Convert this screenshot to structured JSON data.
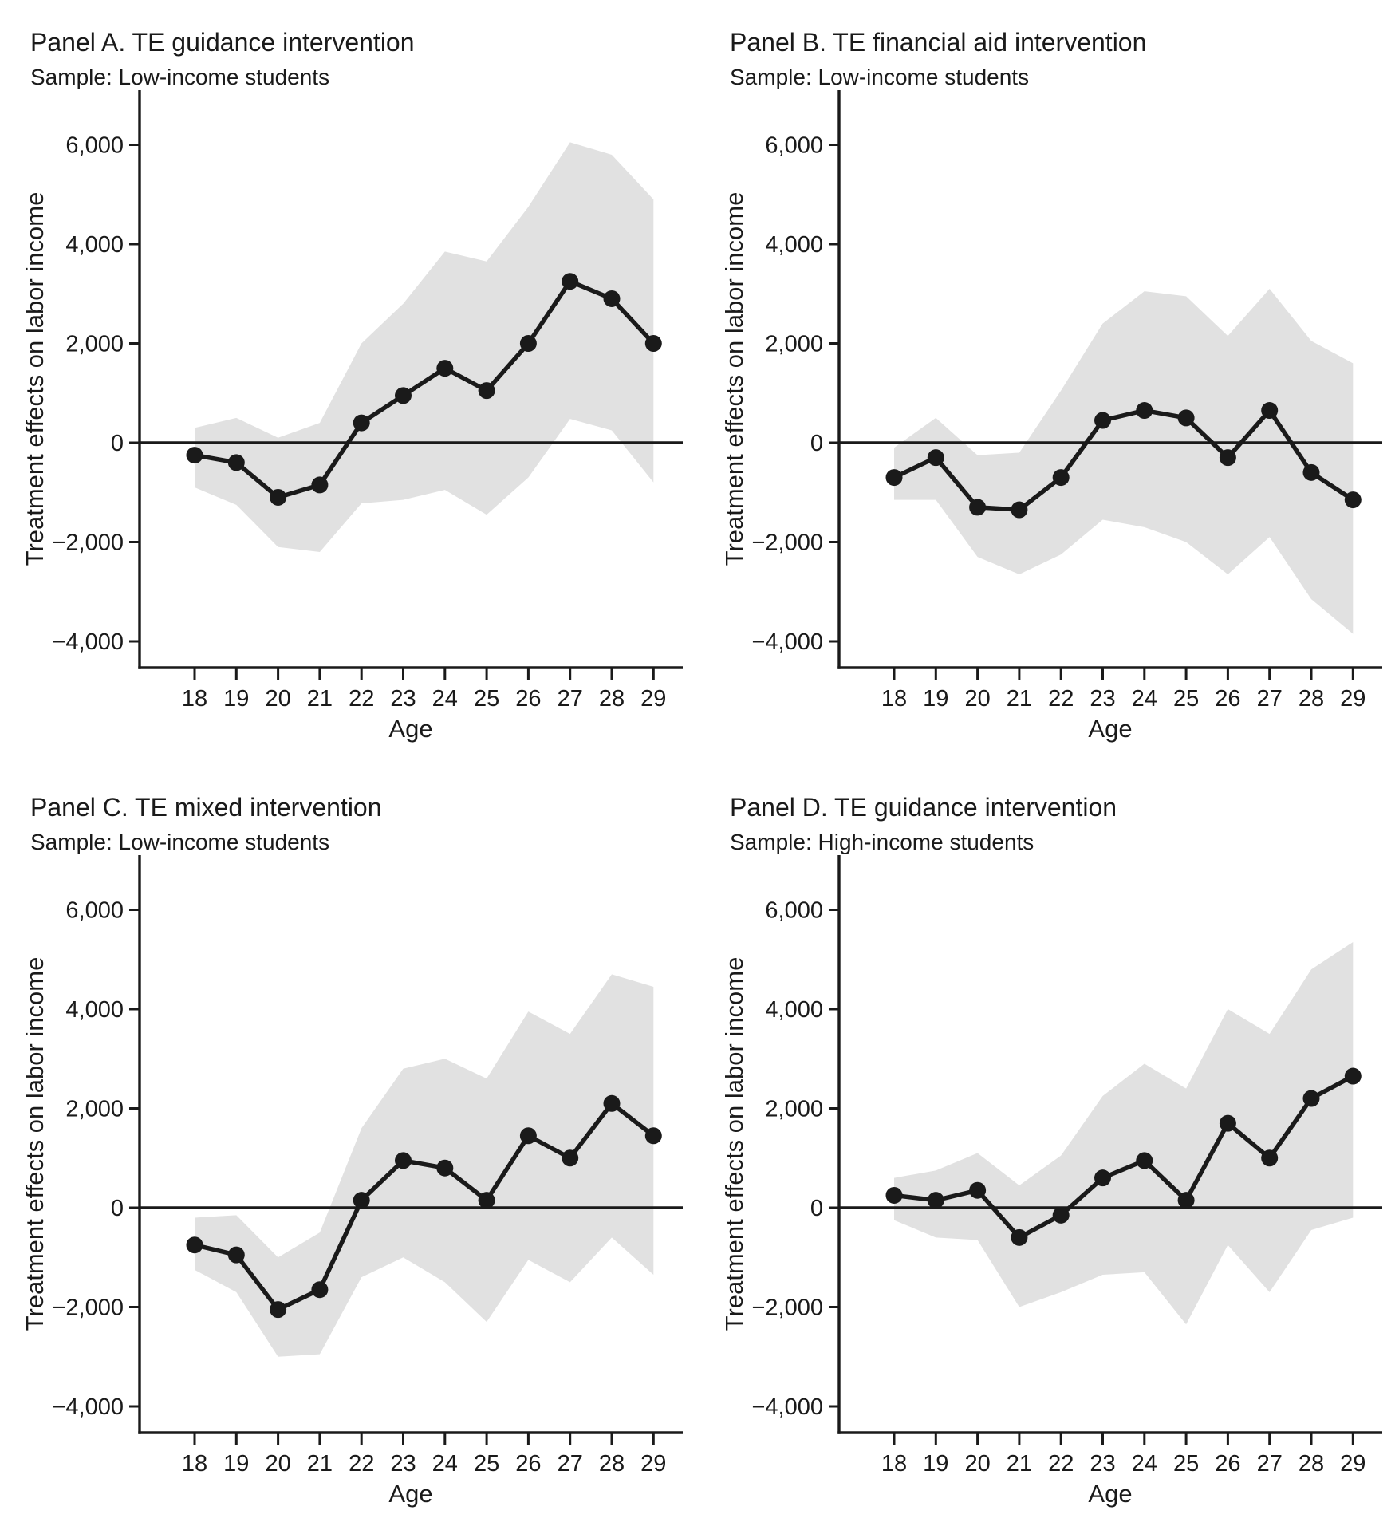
{
  "page": {
    "background": "#ffffff",
    "figure_kind": "2x2 panel line charts with shaded 95% confidence bands"
  },
  "style": {
    "line_color": "#1a1a1a",
    "marker_color": "#1a1a1a",
    "band_color": "#e1e1e1",
    "axis_color": "#1a1a1a",
    "text_color": "#1a1a1a",
    "background": "#ffffff"
  },
  "axes": {
    "yticks": [
      {
        "value": 6000,
        "label": "6,000"
      },
      {
        "value": 4000,
        "label": "4,000"
      },
      {
        "value": 2000,
        "label": "2,000"
      },
      {
        "value": 0,
        "label": "0"
      },
      {
        "value": -2000,
        "label": "−2,000"
      },
      {
        "value": -4000,
        "label": "−4,000"
      }
    ],
    "ylim": [
      -4800,
      6800
    ],
    "grid": false,
    "legend": "none",
    "zero_line": true
  },
  "chart_data": [
    {
      "type": "line",
      "title": "Panel A. TE guidance intervention",
      "subtitle": "Sample: Low-income students",
      "xlabel": "Age",
      "ylabel": "Treatment effects on labor income",
      "x": [
        18,
        19,
        20,
        21,
        22,
        23,
        24,
        25,
        26,
        27,
        28,
        29
      ],
      "values": [
        -250,
        -400,
        -1100,
        -850,
        400,
        950,
        1500,
        1050,
        2000,
        3250,
        2900,
        2000
      ],
      "ci_upper": [
        300,
        500,
        100,
        400,
        2000,
        2800,
        3850,
        3650,
        4750,
        6050,
        5800,
        4900
      ],
      "ci_lower": [
        -900,
        -1250,
        -2100,
        -2200,
        -1220,
        -1150,
        -950,
        -1450,
        -700,
        480,
        250,
        -800
      ]
    },
    {
      "type": "line",
      "title": "Panel B. TE financial aid intervention",
      "subtitle": "Sample: Low-income students",
      "xlabel": "Age",
      "ylabel": "Treatment effects on labor income",
      "x": [
        18,
        19,
        20,
        21,
        22,
        23,
        24,
        25,
        26,
        27,
        28,
        29
      ],
      "values": [
        -700,
        -300,
        -1300,
        -1350,
        -700,
        450,
        650,
        500,
        -300,
        650,
        -600,
        -1150
      ],
      "ci_upper": [
        -100,
        500,
        -250,
        -200,
        1050,
        2400,
        3050,
        2950,
        2150,
        3100,
        2050,
        1600
      ],
      "ci_lower": [
        -1150,
        -1150,
        -2300,
        -2650,
        -2250,
        -1550,
        -1700,
        -2000,
        -2650,
        -1900,
        -3150,
        -3850
      ]
    },
    {
      "type": "line",
      "title": "Panel C. TE mixed intervention",
      "subtitle": "Sample: Low-income students",
      "xlabel": "Age",
      "ylabel": "Treatment effects on labor income",
      "x": [
        18,
        19,
        20,
        21,
        22,
        23,
        24,
        25,
        26,
        27,
        28,
        29
      ],
      "values": [
        -750,
        -950,
        -2050,
        -1650,
        150,
        950,
        800,
        150,
        1450,
        1000,
        2100,
        1450
      ],
      "ci_upper": [
        -200,
        -150,
        -1000,
        -500,
        1600,
        2800,
        3000,
        2600,
        3950,
        3500,
        4700,
        4450
      ],
      "ci_lower": [
        -1250,
        -1700,
        -3000,
        -2950,
        -1400,
        -1000,
        -1500,
        -2300,
        -1050,
        -1500,
        -600,
        -1350
      ]
    },
    {
      "type": "line",
      "title": "Panel D. TE guidance intervention",
      "subtitle": "Sample: High-income students",
      "xlabel": "Age",
      "ylabel": "Treatment effects on labor income",
      "x": [
        18,
        19,
        20,
        21,
        22,
        23,
        24,
        25,
        26,
        27,
        28,
        29
      ],
      "values": [
        250,
        150,
        350,
        -600,
        -150,
        600,
        950,
        150,
        1700,
        1000,
        2200,
        2650
      ],
      "ci_upper": [
        600,
        750,
        1100,
        450,
        1050,
        2250,
        2900,
        2400,
        4000,
        3500,
        4800,
        5350
      ],
      "ci_lower": [
        -250,
        -600,
        -650,
        -2000,
        -1700,
        -1350,
        -1300,
        -2350,
        -750,
        -1700,
        -450,
        -200
      ]
    }
  ]
}
